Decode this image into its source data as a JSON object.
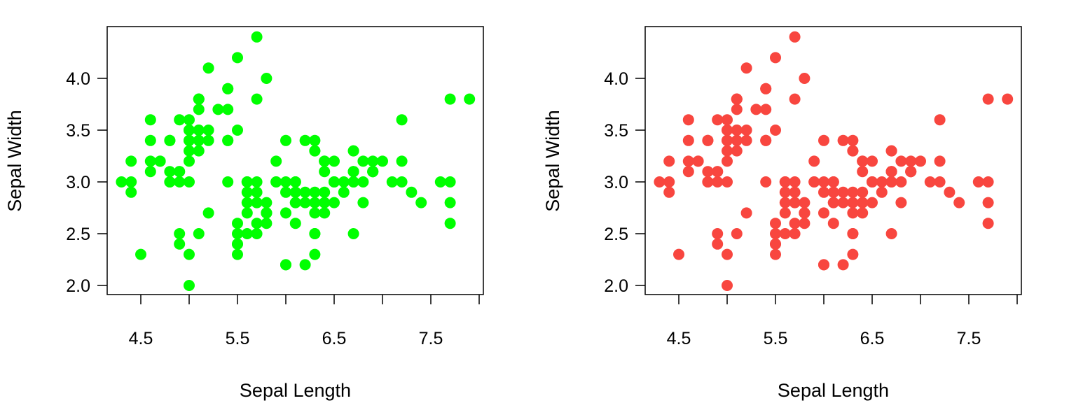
{
  "chart_data": [
    {
      "type": "scatter",
      "xlabel": "Sepal Length",
      "ylabel": "Sepal Width",
      "xlim": [
        4.3,
        7.9
      ],
      "ylim": [
        2.0,
        4.4
      ],
      "xticks": [
        "4.5",
        "5.5",
        "6.5",
        "7.5"
      ],
      "yticks": [
        "2.0",
        "2.5",
        "3.0",
        "3.5",
        "4.0"
      ],
      "color": "#00ff00",
      "series": [
        {
          "x": [
            5.1,
            4.9,
            4.7,
            4.6,
            5.0,
            5.4,
            4.6,
            5.0,
            4.4,
            4.9,
            5.4,
            4.8,
            4.8,
            4.3,
            5.8,
            5.7,
            5.4,
            5.1,
            5.7,
            5.1,
            5.4,
            5.1,
            4.6,
            5.1,
            4.8,
            5.0,
            5.0,
            5.2,
            5.2,
            4.7,
            4.8,
            5.4,
            5.2,
            5.5,
            4.9,
            5.0,
            5.5,
            4.9,
            4.4,
            5.1,
            5.0,
            4.5,
            4.4,
            5.0,
            5.1,
            4.8,
            5.1,
            4.6,
            5.3,
            5.0,
            7.0,
            6.4,
            6.9,
            5.5,
            6.5,
            5.7,
            6.3,
            4.9,
            6.6,
            5.2,
            5.0,
            5.9,
            6.0,
            6.1,
            5.6,
            6.7,
            5.6,
            5.8,
            6.2,
            5.6,
            5.9,
            6.1,
            6.3,
            6.1,
            6.4,
            6.6,
            6.8,
            6.7,
            6.0,
            5.7,
            5.5,
            5.5,
            5.8,
            6.0,
            5.4,
            6.0,
            6.7,
            6.3,
            5.6,
            5.5,
            5.5,
            6.1,
            5.8,
            5.0,
            5.6,
            5.7,
            5.7,
            6.2,
            5.1,
            5.7,
            6.3,
            5.8,
            7.1,
            6.3,
            6.5,
            7.6,
            4.9,
            7.3,
            6.7,
            7.2,
            6.5,
            6.4,
            6.8,
            5.7,
            5.8,
            6.4,
            6.5,
            7.7,
            7.7,
            6.0,
            6.9,
            5.6,
            7.7,
            6.3,
            6.7,
            7.2,
            6.2,
            6.1,
            6.4,
            7.2,
            7.4,
            7.9,
            6.4,
            6.3,
            6.1,
            7.7,
            6.3,
            6.4,
            6.0,
            6.9,
            6.7,
            6.9,
            5.8,
            6.8,
            6.7,
            6.7,
            6.3,
            6.5,
            6.2,
            5.9
          ],
          "y": [
            3.5,
            3.0,
            3.2,
            3.1,
            3.6,
            3.9,
            3.4,
            3.4,
            2.9,
            3.1,
            3.7,
            3.4,
            3.0,
            3.0,
            4.0,
            4.4,
            3.9,
            3.5,
            3.8,
            3.8,
            3.4,
            3.7,
            3.6,
            3.3,
            3.4,
            3.0,
            3.4,
            3.5,
            3.4,
            3.2,
            3.1,
            3.4,
            4.1,
            4.2,
            3.1,
            3.2,
            3.5,
            3.6,
            3.0,
            3.4,
            3.5,
            2.3,
            3.2,
            3.5,
            3.8,
            3.0,
            3.8,
            3.2,
            3.7,
            3.3,
            3.2,
            3.2,
            3.1,
            2.3,
            2.8,
            2.8,
            3.3,
            2.4,
            2.9,
            2.7,
            2.0,
            3.0,
            2.2,
            2.9,
            2.9,
            3.1,
            3.0,
            2.7,
            2.2,
            2.5,
            3.2,
            2.8,
            2.5,
            2.8,
            2.9,
            3.0,
            2.8,
            3.0,
            2.9,
            2.6,
            2.4,
            2.4,
            2.7,
            2.7,
            3.0,
            3.4,
            3.1,
            2.3,
            3.0,
            2.5,
            2.6,
            3.0,
            2.6,
            2.3,
            2.7,
            3.0,
            2.9,
            2.9,
            2.5,
            2.8,
            3.3,
            2.7,
            3.0,
            2.9,
            3.0,
            3.0,
            2.5,
            2.9,
            2.5,
            3.6,
            3.2,
            2.7,
            3.0,
            2.5,
            2.8,
            3.2,
            3.0,
            3.8,
            2.6,
            2.2,
            3.2,
            2.8,
            2.8,
            2.7,
            3.3,
            3.2,
            2.8,
            3.0,
            2.8,
            3.0,
            2.8,
            3.8,
            2.8,
            2.8,
            2.6,
            3.0,
            3.4,
            3.1,
            3.0,
            3.1,
            3.1,
            3.1,
            2.7,
            3.2,
            3.3,
            3.0,
            2.5,
            3.0,
            3.4,
            3.0
          ]
        }
      ]
    },
    {
      "type": "scatter",
      "xlabel": "Sepal Length",
      "ylabel": "Sepal Width",
      "xlim": [
        4.3,
        7.9
      ],
      "ylim": [
        2.0,
        4.4
      ],
      "xticks": [
        "4.5",
        "5.5",
        "6.5",
        "7.5"
      ],
      "yticks": [
        "2.0",
        "2.5",
        "3.0",
        "3.5",
        "4.0"
      ],
      "color": "#f8463f",
      "series": [
        {
          "x": [
            5.1,
            4.9,
            4.7,
            4.6,
            5.0,
            5.4,
            4.6,
            5.0,
            4.4,
            4.9,
            5.4,
            4.8,
            4.8,
            4.3,
            5.8,
            5.7,
            5.4,
            5.1,
            5.7,
            5.1,
            5.4,
            5.1,
            4.6,
            5.1,
            4.8,
            5.0,
            5.0,
            5.2,
            5.2,
            4.7,
            4.8,
            5.4,
            5.2,
            5.5,
            4.9,
            5.0,
            5.5,
            4.9,
            4.4,
            5.1,
            5.0,
            4.5,
            4.4,
            5.0,
            5.1,
            4.8,
            5.1,
            4.6,
            5.3,
            5.0,
            7.0,
            6.4,
            6.9,
            5.5,
            6.5,
            5.7,
            6.3,
            4.9,
            6.6,
            5.2,
            5.0,
            5.9,
            6.0,
            6.1,
            5.6,
            6.7,
            5.6,
            5.8,
            6.2,
            5.6,
            5.9,
            6.1,
            6.3,
            6.1,
            6.4,
            6.6,
            6.8,
            6.7,
            6.0,
            5.7,
            5.5,
            5.5,
            5.8,
            6.0,
            5.4,
            6.0,
            6.7,
            6.3,
            5.6,
            5.5,
            5.5,
            6.1,
            5.8,
            5.0,
            5.6,
            5.7,
            5.7,
            6.2,
            5.1,
            5.7,
            6.3,
            5.8,
            7.1,
            6.3,
            6.5,
            7.6,
            4.9,
            7.3,
            6.7,
            7.2,
            6.5,
            6.4,
            6.8,
            5.7,
            5.8,
            6.4,
            6.5,
            7.7,
            7.7,
            6.0,
            6.9,
            5.6,
            7.7,
            6.3,
            6.7,
            7.2,
            6.2,
            6.1,
            6.4,
            7.2,
            7.4,
            7.9,
            6.4,
            6.3,
            6.1,
            7.7,
            6.3,
            6.4,
            6.0,
            6.9,
            6.7,
            6.9,
            5.8,
            6.8,
            6.7,
            6.7,
            6.3,
            6.5,
            6.2,
            5.9
          ],
          "y": [
            3.5,
            3.0,
            3.2,
            3.1,
            3.6,
            3.9,
            3.4,
            3.4,
            2.9,
            3.1,
            3.7,
            3.4,
            3.0,
            3.0,
            4.0,
            4.4,
            3.9,
            3.5,
            3.8,
            3.8,
            3.4,
            3.7,
            3.6,
            3.3,
            3.4,
            3.0,
            3.4,
            3.5,
            3.4,
            3.2,
            3.1,
            3.4,
            4.1,
            4.2,
            3.1,
            3.2,
            3.5,
            3.6,
            3.0,
            3.4,
            3.5,
            2.3,
            3.2,
            3.5,
            3.8,
            3.0,
            3.8,
            3.2,
            3.7,
            3.3,
            3.2,
            3.2,
            3.1,
            2.3,
            2.8,
            2.8,
            3.3,
            2.4,
            2.9,
            2.7,
            2.0,
            3.0,
            2.2,
            2.9,
            2.9,
            3.1,
            3.0,
            2.7,
            2.2,
            2.5,
            3.2,
            2.8,
            2.5,
            2.8,
            2.9,
            3.0,
            2.8,
            3.0,
            2.9,
            2.6,
            2.4,
            2.4,
            2.7,
            2.7,
            3.0,
            3.4,
            3.1,
            2.3,
            3.0,
            2.5,
            2.6,
            3.0,
            2.6,
            2.3,
            2.7,
            3.0,
            2.9,
            2.9,
            2.5,
            2.8,
            3.3,
            2.7,
            3.0,
            2.9,
            3.0,
            3.0,
            2.5,
            2.9,
            2.5,
            3.6,
            3.2,
            2.7,
            3.0,
            2.5,
            2.8,
            3.2,
            3.0,
            3.8,
            2.6,
            2.2,
            3.2,
            2.8,
            2.8,
            2.7,
            3.3,
            3.2,
            2.8,
            3.0,
            2.8,
            3.0,
            2.8,
            3.8,
            2.8,
            2.8,
            2.6,
            3.0,
            3.4,
            3.1,
            3.0,
            3.1,
            3.1,
            3.1,
            2.7,
            3.2,
            3.3,
            3.0,
            2.5,
            3.0,
            3.4,
            3.0
          ]
        }
      ]
    }
  ]
}
